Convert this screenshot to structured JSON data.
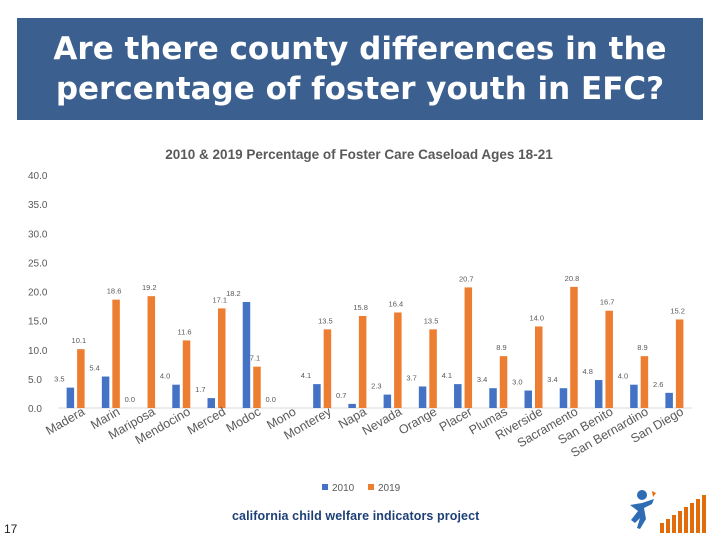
{
  "page_title": "Are there county differences in the percentage of foster youth in EFC?",
  "slide_number": "17",
  "footer": {
    "logo_text": "california child welfare indicators project"
  },
  "colors": {
    "banner": "#3b5f8f",
    "series_2010": "#4472c4",
    "series_2019": "#ed7d31"
  },
  "chart_data": {
    "type": "bar",
    "title": "2010 & 2019 Percentage of Foster Care Caseload Ages 18-21",
    "ylim": [
      0,
      40
    ],
    "yticks": [
      "0.0",
      "5.0",
      "10.0",
      "15.0",
      "20.0",
      "25.0",
      "30.0",
      "35.0",
      "40.0"
    ],
    "categories": [
      "Madera",
      "Marin",
      "Mariposa",
      "Mendocino",
      "Merced",
      "Modoc",
      "Mono",
      "Monterey",
      "Napa",
      "Nevada",
      "Orange",
      "Placer",
      "Plumas",
      "Riverside",
      "Sacramento",
      "San Benito",
      "San Bernardino",
      "San Diego"
    ],
    "series": [
      {
        "name": "2010",
        "values": [
          3.5,
          5.4,
          0.0,
          4.0,
          1.7,
          18.2,
          0.0,
          4.1,
          0.7,
          2.3,
          3.7,
          4.1,
          3.4,
          3.0,
          3.4,
          4.8,
          4.0,
          2.6
        ],
        "labels": [
          "3.5",
          "5.4",
          "0.0",
          "4.0",
          "1.7",
          "18.2",
          "0.0",
          "4.1",
          "0.7",
          "2.3",
          "3.7",
          "4.1",
          "3.4",
          "3.0",
          "3.4",
          "4.8",
          "4.0",
          "2.6"
        ]
      },
      {
        "name": "2019",
        "values": [
          10.1,
          18.6,
          19.2,
          11.6,
          17.1,
          7.1,
          null,
          13.5,
          15.8,
          16.4,
          13.5,
          20.7,
          8.9,
          14.0,
          20.8,
          16.7,
          8.9,
          15.2
        ],
        "labels": [
          "10.1",
          "18.6",
          "19.2",
          "11.6",
          "17.1",
          "7.1",
          "",
          "13.5",
          "15.8",
          "16.4",
          "13.5",
          "20.7",
          "8.9",
          "14.0",
          "20.8",
          "16.7",
          "8.9",
          "15.2"
        ]
      }
    ],
    "legend": [
      "2010",
      "2019"
    ],
    "legend_position": "bottom",
    "grid": false
  }
}
